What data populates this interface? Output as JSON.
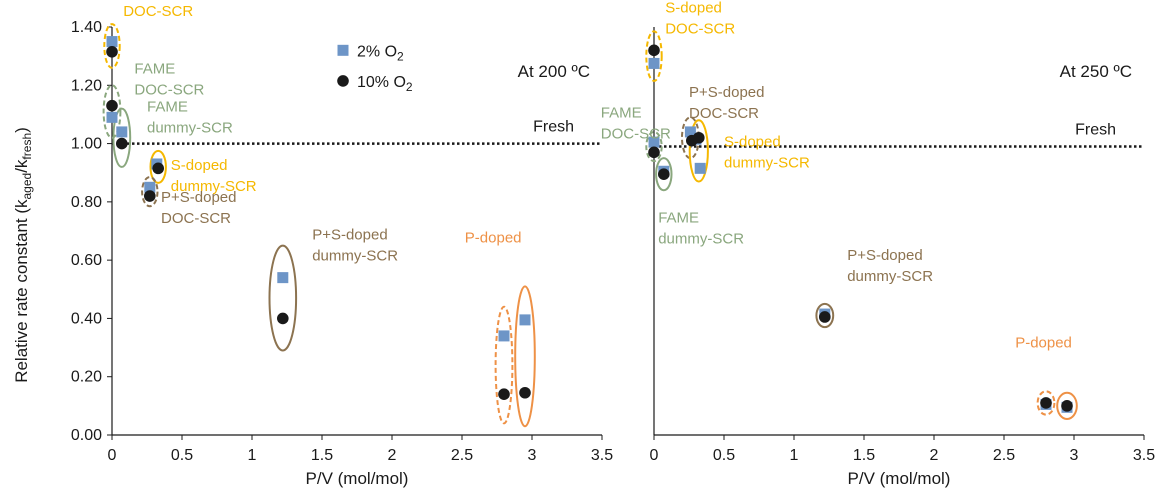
{
  "colors": {
    "o2_2": "#6d95c7",
    "o2_10": "#1a1a1a",
    "sdoped": "#f5b800",
    "fame": "#8aa77e",
    "psdoped": "#8c7350",
    "pdoped": "#ee9146"
  },
  "chart_data": {
    "type": "scatter",
    "ylabel": "Relative rate constant (k",
    "ylabel_sub_aged": "aged",
    "ylabel_mid": "/k",
    "ylabel_sub_fresh": "fresh",
    "ylabel_end": ")",
    "legend": {
      "o2_2": {
        "text": "2% O",
        "sub": "2"
      },
      "o2_10": {
        "text": "10% O",
        "sub": "2"
      }
    },
    "panels": [
      {
        "title": "At 200 ºC",
        "xlabel": "P/V (mol/mol)",
        "xlim": [
          0,
          3.5
        ],
        "ylim": [
          0,
          1.4
        ],
        "xticks": [
          "0",
          "0.5",
          "1",
          "1.5",
          "2",
          "2.5",
          "3",
          "3.5"
        ],
        "yticks": [
          "0.00",
          "0.20",
          "0.40",
          "0.60",
          "0.80",
          "1.00",
          "1.20",
          "1.40"
        ],
        "fresh": {
          "value": 1.0,
          "label": "Fresh"
        },
        "series": [
          {
            "key": "o2_2",
            "points": [
              [
                0.0,
                1.35
              ],
              [
                0.0,
                1.09
              ],
              [
                0.07,
                1.04
              ],
              [
                0.32,
                0.93
              ],
              [
                0.27,
                0.85
              ],
              [
                1.22,
                0.54
              ],
              [
                2.8,
                0.34
              ],
              [
                2.95,
                0.395
              ]
            ]
          },
          {
            "key": "o2_10",
            "points": [
              [
                0.0,
                1.315
              ],
              [
                0.0,
                1.13
              ],
              [
                0.07,
                1.0
              ],
              [
                0.33,
                0.915
              ],
              [
                0.27,
                0.82
              ],
              [
                1.22,
                0.4
              ],
              [
                2.8,
                0.14
              ],
              [
                2.95,
                0.145
              ]
            ]
          }
        ],
        "annotations": [
          {
            "lines": [
              "S-doped",
              "DOC-SCR"
            ],
            "color": "sdoped",
            "at": [
              0.08,
              1.51
            ]
          },
          {
            "lines": [
              "FAME",
              "DOC-SCR"
            ],
            "color": "fame",
            "at": [
              0.16,
              1.24
            ]
          },
          {
            "lines": [
              "FAME",
              "dummy-SCR"
            ],
            "color": "fame",
            "at": [
              0.25,
              1.11
            ]
          },
          {
            "lines": [
              "S-doped",
              "dummy-SCR"
            ],
            "color": "sdoped",
            "at": [
              0.42,
              0.91
            ]
          },
          {
            "lines": [
              "P+S-doped",
              "DOC-SCR"
            ],
            "color": "psdoped",
            "at": [
              0.35,
              0.8
            ]
          },
          {
            "lines": [
              "P+S-doped",
              "dummy-SCR"
            ],
            "color": "psdoped",
            "at": [
              1.43,
              0.67
            ]
          },
          {
            "lines": [
              "P-doped"
            ],
            "color": "pdoped",
            "at": [
              2.52,
              0.66
            ]
          }
        ],
        "ellipses": [
          {
            "cx": 0.0,
            "cy": 1.335,
            "rx": 0.055,
            "ry": 0.075,
            "color": "sdoped",
            "dashed": true
          },
          {
            "cx": 0.0,
            "cy": 1.11,
            "rx": 0.06,
            "ry": 0.09,
            "color": "fame",
            "dashed": true
          },
          {
            "cx": 0.07,
            "cy": 1.02,
            "rx": 0.06,
            "ry": 0.1,
            "color": "fame",
            "dashed": false
          },
          {
            "cx": 0.33,
            "cy": 0.92,
            "rx": 0.055,
            "ry": 0.055,
            "color": "sdoped",
            "dashed": false
          },
          {
            "cx": 0.27,
            "cy": 0.835,
            "rx": 0.055,
            "ry": 0.05,
            "color": "psdoped",
            "dashed": true
          },
          {
            "cx": 1.22,
            "cy": 0.47,
            "rx": 0.095,
            "ry": 0.18,
            "color": "psdoped",
            "dashed": false
          },
          {
            "cx": 2.8,
            "cy": 0.24,
            "rx": 0.06,
            "ry": 0.2,
            "color": "pdoped",
            "dashed": true
          },
          {
            "cx": 2.95,
            "cy": 0.27,
            "rx": 0.07,
            "ry": 0.24,
            "color": "pdoped",
            "dashed": false
          }
        ],
        "legend_visible": true
      },
      {
        "title": "At 250 ºC",
        "xlabel": "P/V (mol/mol)",
        "xlim": [
          0,
          3.5
        ],
        "ylim": [
          0,
          1.4
        ],
        "xticks": [
          "0",
          "0.5",
          "1",
          "1.5",
          "2",
          "2.5",
          "3",
          "3.5"
        ],
        "yticks": [],
        "fresh": {
          "value": 0.99,
          "label": "Fresh"
        },
        "series": [
          {
            "key": "o2_2",
            "points": [
              [
                0.0,
                1.275
              ],
              [
                0.0,
                1.005
              ],
              [
                0.07,
                0.905
              ],
              [
                0.26,
                1.04
              ],
              [
                0.3,
                1.015
              ],
              [
                0.33,
                0.915
              ],
              [
                1.22,
                0.415
              ],
              [
                2.8,
                0.105
              ],
              [
                2.95,
                0.095
              ]
            ]
          },
          {
            "key": "o2_10",
            "points": [
              [
                0.0,
                1.32
              ],
              [
                0.0,
                0.97
              ],
              [
                0.07,
                0.895
              ],
              [
                0.27,
                1.01
              ],
              [
                0.32,
                1.02
              ],
              [
                1.22,
                0.405
              ],
              [
                2.8,
                0.11
              ],
              [
                2.95,
                0.1
              ]
            ]
          }
        ],
        "annotations": [
          {
            "lines": [
              "S-doped",
              "DOC-SCR"
            ],
            "color": "sdoped",
            "at": [
              0.08,
              1.45
            ]
          },
          {
            "lines": [
              "P+S-doped",
              "DOC-SCR"
            ],
            "color": "psdoped",
            "at": [
              0.25,
              1.16
            ]
          },
          {
            "lines": [
              "FAME",
              "DOC-SCR"
            ],
            "color": "fame",
            "at": [
              -0.38,
              1.09
            ]
          },
          {
            "lines": [
              "S-doped",
              "dummy-SCR"
            ],
            "color": "sdoped",
            "at": [
              0.5,
              0.99
            ]
          },
          {
            "lines": [
              "FAME",
              "dummy-SCR"
            ],
            "color": "fame",
            "at": [
              0.03,
              0.73
            ]
          },
          {
            "lines": [
              "P+S-doped",
              "dummy-SCR"
            ],
            "color": "psdoped",
            "at": [
              1.38,
              0.6
            ]
          },
          {
            "lines": [
              "P-doped"
            ],
            "color": "pdoped",
            "at": [
              2.58,
              0.3
            ]
          }
        ],
        "ellipses": [
          {
            "cx": 0.0,
            "cy": 1.3,
            "rx": 0.055,
            "ry": 0.085,
            "color": "sdoped",
            "dashed": true
          },
          {
            "cx": 0.0,
            "cy": 0.99,
            "rx": 0.055,
            "ry": 0.05,
            "color": "fame",
            "dashed": true
          },
          {
            "cx": 0.07,
            "cy": 0.895,
            "rx": 0.055,
            "ry": 0.055,
            "color": "fame",
            "dashed": false
          },
          {
            "cx": 0.26,
            "cy": 1.02,
            "rx": 0.06,
            "ry": 0.07,
            "color": "psdoped",
            "dashed": true
          },
          {
            "cx": 0.32,
            "cy": 0.975,
            "rx": 0.065,
            "ry": 0.105,
            "color": "sdoped",
            "dashed": false
          },
          {
            "cx": 1.22,
            "cy": 0.41,
            "rx": 0.06,
            "ry": 0.04,
            "color": "psdoped",
            "dashed": false
          },
          {
            "cx": 2.8,
            "cy": 0.11,
            "rx": 0.06,
            "ry": 0.04,
            "color": "pdoped",
            "dashed": true
          },
          {
            "cx": 2.95,
            "cy": 0.1,
            "rx": 0.07,
            "ry": 0.045,
            "color": "pdoped",
            "dashed": false
          }
        ],
        "legend_visible": false
      }
    ]
  }
}
